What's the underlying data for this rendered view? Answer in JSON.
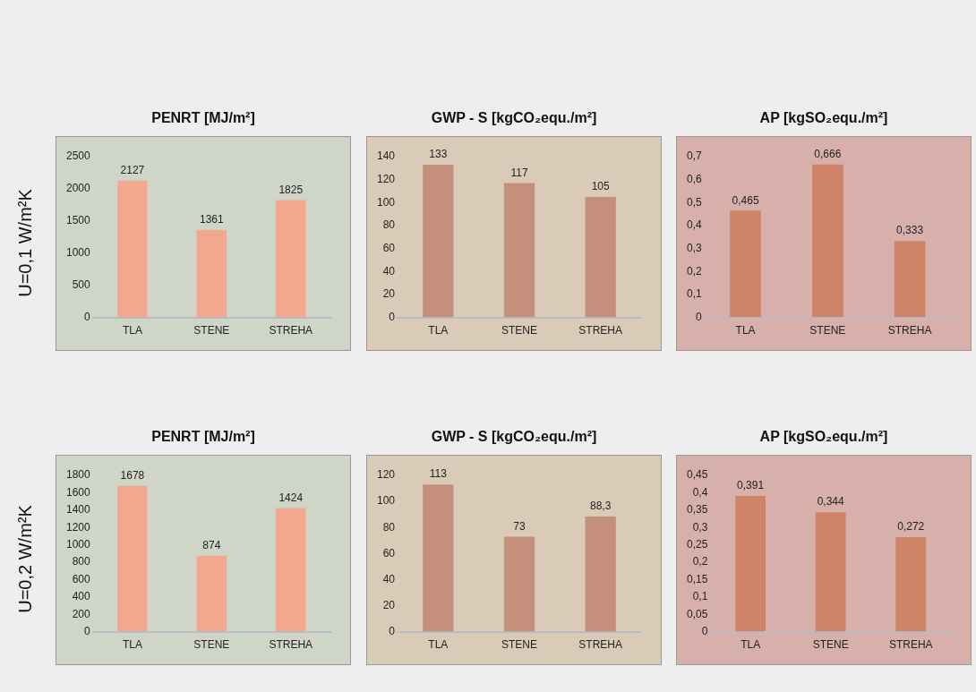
{
  "chart_data": [
    {
      "type": "bar",
      "title": "PENRT [MJ/m²]",
      "ylabel": "U=0,1 W/m²K",
      "categories": [
        "TLA",
        "STENE",
        "STREHA"
      ],
      "values": [
        2127,
        1361,
        1825
      ],
      "color": "#f2a88e",
      "value_labels": [
        "2127",
        "1361",
        "1825"
      ],
      "ylim": [
        0,
        2500
      ],
      "yticks": [
        0,
        500,
        1000,
        1500,
        2000,
        2500
      ],
      "grid": false,
      "legend": false
    },
    {
      "type": "bar",
      "title": "GWP - S [kgCO₂equ./m²]",
      "categories": [
        "TLA",
        "STENE",
        "STREHA"
      ],
      "values": [
        133,
        117,
        105
      ],
      "color": "#c4907c",
      "value_labels": [
        "133",
        "117",
        "105"
      ],
      "ylim": [
        0,
        140
      ],
      "yticks": [
        0,
        20,
        40,
        60,
        80,
        100,
        120,
        140
      ],
      "grid": false,
      "legend": false
    },
    {
      "type": "bar",
      "title": "AP [kgSO₂equ./m²]",
      "categories": [
        "TLA",
        "STENE",
        "STREHA"
      ],
      "values": [
        0.465,
        0.666,
        0.333
      ],
      "color": "#cf8468",
      "value_labels": [
        "0,465",
        "0,666",
        "0,333"
      ],
      "ylim": [
        0,
        0.7
      ],
      "yticks": [
        {
          "value": 0,
          "label": "0"
        },
        {
          "value": 0.1,
          "label": "0,1"
        },
        {
          "value": 0.2,
          "label": "0,2"
        },
        {
          "value": 0.3,
          "label": "0,3"
        },
        {
          "value": 0.4,
          "label": "0,4"
        },
        {
          "value": 0.5,
          "label": "0,5"
        },
        {
          "value": 0.6,
          "label": "0,6"
        },
        {
          "value": 0.7,
          "label": "0,7"
        }
      ],
      "grid": false,
      "legend": false
    },
    {
      "type": "bar",
      "title": "PENRT [MJ/m²]",
      "ylabel": "U=0,2 W/m²K",
      "categories": [
        "TLA",
        "STENE",
        "STREHA"
      ],
      "values": [
        1678,
        874,
        1424
      ],
      "color": "#f2a88e",
      "value_labels": [
        "1678",
        "874",
        "1424"
      ],
      "ylim": [
        0,
        1800
      ],
      "yticks": [
        0,
        200,
        400,
        600,
        800,
        1000,
        1200,
        1400,
        1600,
        1800
      ],
      "grid": false,
      "legend": false
    },
    {
      "type": "bar",
      "title": "GWP - S [kgCO₂equ./m²]",
      "categories": [
        "TLA",
        "STENE",
        "STREHA"
      ],
      "values": [
        113,
        73,
        88.3
      ],
      "color": "#c4907c",
      "value_labels": [
        "113",
        "73",
        "88,3"
      ],
      "ylim": [
        0,
        120
      ],
      "yticks": [
        0,
        20,
        40,
        60,
        80,
        100,
        120
      ],
      "grid": false,
      "legend": false
    },
    {
      "type": "bar",
      "title": "AP [kgSO₂equ./m²]",
      "categories": [
        "TLA",
        "STENE",
        "STREHA"
      ],
      "values": [
        0.391,
        0.344,
        0.272
      ],
      "color": "#cf8468",
      "value_labels": [
        "0,391",
        "0,344",
        "0,272"
      ],
      "ylim": [
        0,
        0.45
      ],
      "yticks": [
        {
          "value": 0,
          "label": "0"
        },
        {
          "value": 0.05,
          "label": "0,05"
        },
        {
          "value": 0.1,
          "label": "0,1"
        },
        {
          "value": 0.15,
          "label": "0,15"
        },
        {
          "value": 0.2,
          "label": "0,2"
        },
        {
          "value": 0.25,
          "label": "0,25"
        },
        {
          "value": 0.3,
          "label": "0,3"
        },
        {
          "value": 0.35,
          "label": "0,35"
        },
        {
          "value": 0.4,
          "label": "0,4"
        },
        {
          "value": 0.45,
          "label": "0,45"
        }
      ],
      "grid": false,
      "legend": false
    }
  ]
}
